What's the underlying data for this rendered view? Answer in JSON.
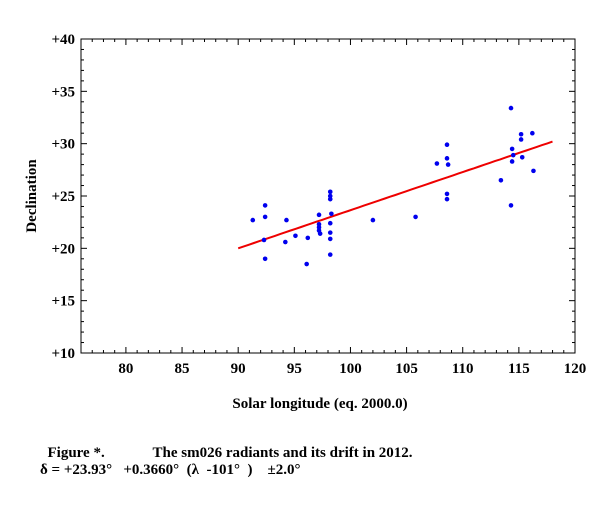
{
  "chart_data": {
    "type": "scatter",
    "title": "",
    "xlabel": "Solar longitude (eq. 2000.0)",
    "ylabel": "Declination",
    "xlim": [
      76,
      120
    ],
    "ylim": [
      10,
      40
    ],
    "xticks": [
      80,
      85,
      90,
      95,
      100,
      105,
      110,
      115,
      120
    ],
    "xtick_labels": [
      "80",
      "85",
      "90",
      "95",
      "100",
      "105",
      "110",
      "115",
      "120"
    ],
    "yticks": [
      10,
      15,
      20,
      25,
      30,
      35,
      40
    ],
    "ytick_labels": [
      "+10",
      "+15",
      "+20",
      "+25",
      "+30",
      "+35",
      "+40"
    ],
    "series": [
      {
        "name": "radiants",
        "type": "scatter",
        "color": "#0000ee",
        "points": [
          [
            91.3,
            22.7
          ],
          [
            92.4,
            24.1
          ],
          [
            92.4,
            23.0
          ],
          [
            92.3,
            20.8
          ],
          [
            92.4,
            19.0
          ],
          [
            94.3,
            22.7
          ],
          [
            94.2,
            20.6
          ],
          [
            95.1,
            21.2
          ],
          [
            96.2,
            21.0
          ],
          [
            96.1,
            18.5
          ],
          [
            97.2,
            23.2
          ],
          [
            97.2,
            22.3
          ],
          [
            97.2,
            22.0
          ],
          [
            97.2,
            21.7
          ],
          [
            97.3,
            21.4
          ],
          [
            98.2,
            25.4
          ],
          [
            98.2,
            25.0
          ],
          [
            98.2,
            24.7
          ],
          [
            98.3,
            23.3
          ],
          [
            98.2,
            22.4
          ],
          [
            98.2,
            21.5
          ],
          [
            98.2,
            20.9
          ],
          [
            98.2,
            19.4
          ],
          [
            102.0,
            22.7
          ],
          [
            105.8,
            23.0
          ],
          [
            107.7,
            28.1
          ],
          [
            108.6,
            29.9
          ],
          [
            108.6,
            28.6
          ],
          [
            108.7,
            28.0
          ],
          [
            108.6,
            25.2
          ],
          [
            108.6,
            24.7
          ],
          [
            113.4,
            26.5
          ],
          [
            114.3,
            33.4
          ],
          [
            114.4,
            29.5
          ],
          [
            114.5,
            28.9
          ],
          [
            114.4,
            28.3
          ],
          [
            114.3,
            24.1
          ],
          [
            115.2,
            30.9
          ],
          [
            115.2,
            30.4
          ],
          [
            115.3,
            28.7
          ],
          [
            116.2,
            31.0
          ],
          [
            116.3,
            27.4
          ]
        ]
      },
      {
        "name": "drift",
        "type": "line",
        "color": "#ee0000",
        "x": [
          90,
          118
        ],
        "y": [
          20.0,
          30.2
        ]
      }
    ]
  },
  "caption": {
    "figure_label": "Figure *.",
    "figure_text": "The sm026 radiants and its drift in 2012.",
    "formula": "δ = +23.93°   +0.3660°  (λ  -101°  )    ±2.0°"
  }
}
